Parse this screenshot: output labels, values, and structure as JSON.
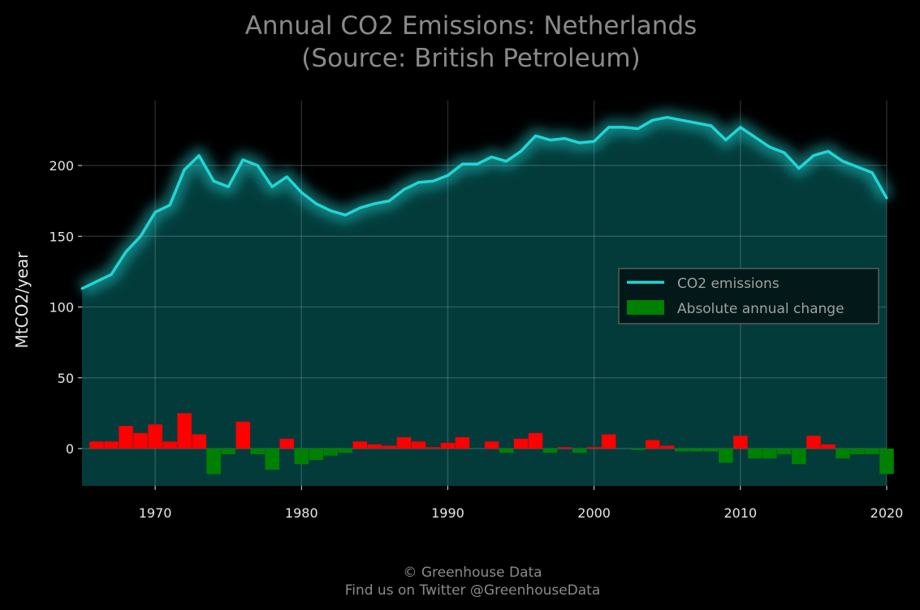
{
  "chart_data": {
    "type": "line",
    "title": "Annual CO2 Emissions: Netherlands",
    "subtitle": "(Source: British Petroleum)",
    "xlabel": "",
    "ylabel": "MtCO2/year",
    "xlim": [
      1965,
      2020
    ],
    "ylim": [
      -20,
      245
    ],
    "x_ticks": [
      "1970",
      "1980",
      "1990",
      "2000",
      "2010",
      "2020"
    ],
    "y_ticks": [
      "0",
      "50",
      "100",
      "150",
      "200"
    ],
    "grid": true,
    "legend_position": "center-right",
    "years": [
      1965,
      1966,
      1967,
      1968,
      1969,
      1970,
      1971,
      1972,
      1973,
      1974,
      1975,
      1976,
      1977,
      1978,
      1979,
      1980,
      1981,
      1982,
      1983,
      1984,
      1985,
      1986,
      1987,
      1988,
      1989,
      1990,
      1991,
      1992,
      1993,
      1994,
      1995,
      1996,
      1997,
      1998,
      1999,
      2000,
      2001,
      2002,
      2003,
      2004,
      2005,
      2006,
      2007,
      2008,
      2009,
      2010,
      2011,
      2012,
      2013,
      2014,
      2015,
      2016,
      2017,
      2018,
      2019,
      2020
    ],
    "series": [
      {
        "name": "CO2 emissions",
        "type": "line",
        "color": "#1fd6d6",
        "values": [
          113,
          118,
          123,
          139,
          150,
          167,
          172,
          197,
          207,
          189,
          185,
          204,
          200,
          185,
          192,
          181,
          173,
          168,
          165,
          170,
          173,
          175,
          183,
          188,
          189,
          193,
          201,
          201,
          206,
          203,
          210,
          221,
          218,
          219,
          216,
          217,
          227,
          227,
          226,
          232,
          234,
          232,
          230,
          228,
          218,
          227,
          220,
          213,
          209,
          198,
          207,
          210,
          203,
          199,
          195,
          177
        ]
      },
      {
        "name": "Absolute annual change",
        "type": "bar",
        "positive_color": "#ff0000",
        "negative_color": "#008000",
        "values": [
          null,
          5,
          5,
          16,
          11,
          17,
          5,
          25,
          10,
          -18,
          -4,
          19,
          -4,
          -15,
          7,
          -11,
          -8,
          -5,
          -3,
          5,
          3,
          2,
          8,
          5,
          1,
          4,
          8,
          0,
          5,
          -3,
          7,
          11,
          -3,
          1,
          -3,
          1,
          10,
          0,
          -1,
          6,
          2,
          -2,
          -2,
          -2,
          -10,
          9,
          -7,
          -7,
          -4,
          -11,
          9,
          3,
          -7,
          -4,
          -4,
          -18
        ]
      }
    ]
  },
  "footer": {
    "copyright": "© Greenhouse Data",
    "twitter": "Find us on Twitter @GreenhouseData"
  },
  "colors": {
    "background": "#000000",
    "area_fill": "#033b3b",
    "line": "#1fd6d6",
    "increase": "#ff0000",
    "decrease": "#008000"
  }
}
